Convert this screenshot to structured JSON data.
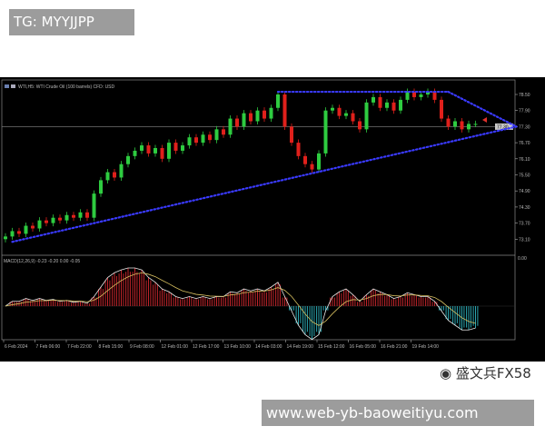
{
  "watermark_top": "TG: MYYJJPP",
  "watermark_bottom": "www.web-yb-baoweitiyu.com",
  "watermark_weibo": "盛文兵FX58",
  "chart_data": {
    "type": "candlestick",
    "title": "WTI,H5: WTI Crude Oil (100 barrels) CFD: USD",
    "ylim": [
      72.9,
      78.8
    ],
    "y_ticks": [
      "78.50",
      "77.90",
      "77.30",
      "76.70",
      "76.10",
      "75.50",
      "74.90",
      "74.30",
      "73.70",
      "73.10"
    ],
    "current_price": "77.30",
    "x_ticks": [
      "6 Feb 2024",
      "7 Feb 06:00",
      "7 Feb 22:00",
      "8 Feb 15:00",
      "9 Feb 08:00",
      "12 Feb 01:00",
      "12 Feb 17:00",
      "13 Feb 10:00",
      "14 Feb 03:00",
      "14 Feb 19:00",
      "15 Feb 12:00",
      "16 Feb 05:00",
      "16 Feb 21:00",
      "19 Feb 14:00"
    ],
    "closes": [
      73.2,
      73.4,
      73.3,
      73.6,
      73.5,
      73.8,
      73.7,
      73.9,
      73.8,
      74.0,
      73.9,
      74.1,
      73.9,
      74.8,
      75.3,
      75.6,
      75.4,
      75.9,
      76.2,
      76.4,
      76.6,
      76.3,
      76.5,
      76.1,
      76.7,
      76.4,
      76.6,
      76.9,
      76.7,
      77.0,
      76.8,
      77.2,
      77.0,
      77.6,
      77.3,
      77.8,
      77.5,
      77.9,
      77.6,
      78.0,
      78.5,
      77.3,
      76.7,
      76.2,
      75.9,
      75.7,
      76.3,
      77.9,
      78.0,
      77.7,
      77.8,
      77.5,
      77.2,
      78.2,
      78.4,
      78.0,
      78.2,
      77.9,
      78.3,
      78.6,
      78.4,
      78.5,
      78.6,
      78.3,
      77.6,
      77.3,
      77.5,
      77.2,
      77.4,
      77.4
    ],
    "trendlines": [
      {
        "from": [
          40,
          78.6
        ],
        "to": [
          65,
          78.6
        ]
      },
      {
        "from": [
          65,
          78.6
        ],
        "to": [
          75,
          77.3
        ]
      },
      {
        "from": [
          1,
          73.0
        ],
        "to": [
          75,
          77.3
        ]
      }
    ],
    "macd": {
      "label": "MACD(12,26,9) -0.23 -0.20 0.00 -0.05",
      "ylim": [
        -0.4,
        0.5
      ],
      "zero_tick": "0.00",
      "values": [
        0.0,
        0.05,
        0.05,
        0.08,
        0.06,
        0.08,
        0.06,
        0.07,
        0.05,
        0.06,
        0.04,
        0.05,
        0.03,
        0.1,
        0.2,
        0.3,
        0.35,
        0.38,
        0.4,
        0.4,
        0.38,
        0.3,
        0.25,
        0.18,
        0.15,
        0.1,
        0.08,
        0.1,
        0.08,
        0.1,
        0.08,
        0.1,
        0.1,
        0.15,
        0.14,
        0.18,
        0.16,
        0.18,
        0.16,
        0.2,
        0.25,
        0.1,
        -0.05,
        -0.2,
        -0.3,
        -0.35,
        -0.3,
        -0.05,
        0.1,
        0.15,
        0.18,
        0.12,
        0.05,
        0.12,
        0.18,
        0.15,
        0.12,
        0.08,
        0.1,
        0.14,
        0.12,
        0.1,
        0.1,
        0.05,
        -0.05,
        -0.15,
        -0.2,
        -0.25,
        -0.25,
        -0.23
      ]
    },
    "colors": {
      "up": "#2ecc40",
      "down": "#e0201b",
      "trendline": "#3a3aff",
      "hist_pos": "#c0242a",
      "hist_neg": "#2aa6b0",
      "macd_line": "#e8e8e8",
      "signal_line": "#d8c060"
    }
  }
}
